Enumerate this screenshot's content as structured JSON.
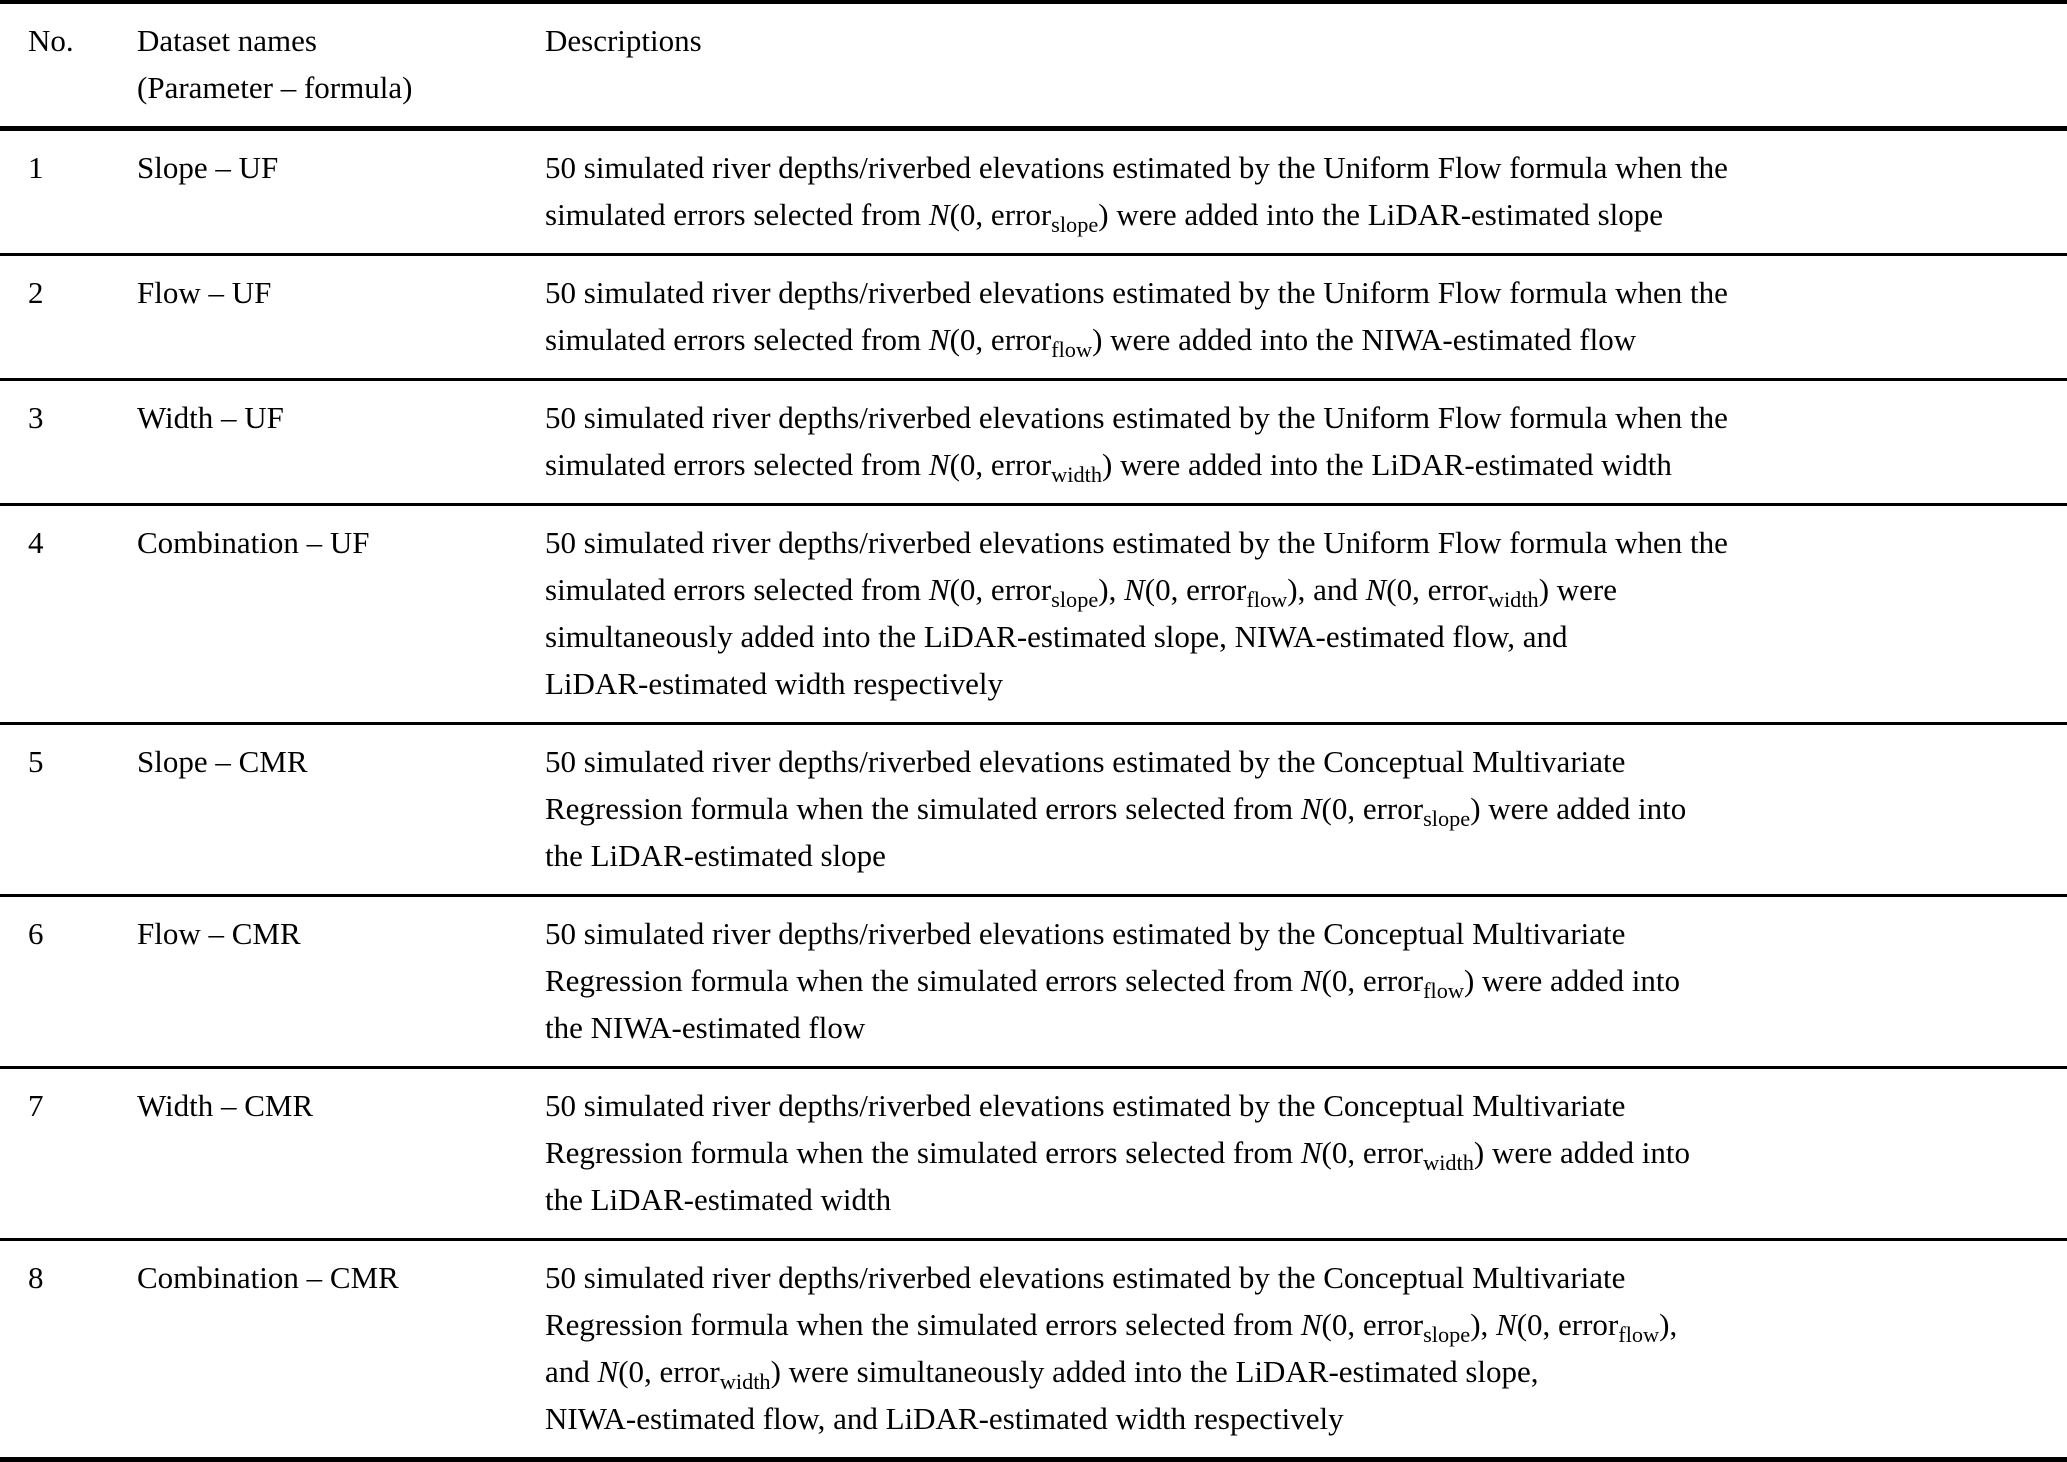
{
  "page": {
    "background_color": "#ffffff",
    "text_color": "#000000",
    "rule_color": "#000000"
  },
  "table": {
    "header": {
      "no": "No.",
      "dataset_lines": [
        "Dataset names",
        "(Parameter – formula)"
      ],
      "descriptions": "Descriptions"
    },
    "rows": [
      {
        "no": "1",
        "name": "Slope – UF",
        "description_lines": [
          [
            {
              "t": "50 simulated river depths/riverbed elevations estimated by the Uniform Flow formula when the"
            }
          ],
          [
            {
              "t": "simulated errors selected from "
            },
            {
              "i": "N"
            },
            {
              "t": "(0, error"
            },
            {
              "sub": "slope"
            },
            {
              "t": ") were added into the LiDAR-estimated slope"
            }
          ]
        ]
      },
      {
        "no": "2",
        "name": "Flow – UF",
        "description_lines": [
          [
            {
              "t": "50 simulated river depths/riverbed elevations estimated by the Uniform Flow formula when the"
            }
          ],
          [
            {
              "t": "simulated errors selected from "
            },
            {
              "i": "N"
            },
            {
              "t": "(0, error"
            },
            {
              "sub": "flow"
            },
            {
              "t": ") were added into the NIWA-estimated flow"
            }
          ]
        ]
      },
      {
        "no": "3",
        "name": "Width – UF",
        "description_lines": [
          [
            {
              "t": "50 simulated river depths/riverbed elevations estimated by the Uniform Flow formula when the"
            }
          ],
          [
            {
              "t": "simulated errors selected from "
            },
            {
              "i": "N"
            },
            {
              "t": "(0, error"
            },
            {
              "sub": "width"
            },
            {
              "t": ") were added into the LiDAR-estimated width"
            }
          ]
        ]
      },
      {
        "no": "4",
        "name": "Combination – UF",
        "description_lines": [
          [
            {
              "t": "50 simulated river depths/riverbed elevations estimated by the Uniform Flow formula when the"
            }
          ],
          [
            {
              "t": "simulated errors selected from "
            },
            {
              "i": "N"
            },
            {
              "t": "(0, error"
            },
            {
              "sub": "slope"
            },
            {
              "t": "), "
            },
            {
              "i": "N"
            },
            {
              "t": "(0, error"
            },
            {
              "sub": "flow"
            },
            {
              "t": "), and "
            },
            {
              "i": "N"
            },
            {
              "t": "(0, error"
            },
            {
              "sub": "width"
            },
            {
              "t": ") were"
            }
          ],
          [
            {
              "t": "simultaneously added into the LiDAR-estimated slope, NIWA-estimated flow, and"
            }
          ],
          [
            {
              "t": "LiDAR-estimated width respectively"
            }
          ]
        ]
      },
      {
        "no": "5",
        "name": "Slope – CMR",
        "description_lines": [
          [
            {
              "t": "50 simulated river depths/riverbed elevations estimated by the Conceptual Multivariate"
            }
          ],
          [
            {
              "t": "Regression formula when the simulated errors selected from "
            },
            {
              "i": "N"
            },
            {
              "t": "(0, error"
            },
            {
              "sub": "slope"
            },
            {
              "t": ") were added into"
            }
          ],
          [
            {
              "t": "the LiDAR-estimated slope"
            }
          ]
        ]
      },
      {
        "no": "6",
        "name": "Flow – CMR",
        "description_lines": [
          [
            {
              "t": "50 simulated river depths/riverbed elevations estimated by the Conceptual Multivariate"
            }
          ],
          [
            {
              "t": "Regression formula when the simulated errors selected from "
            },
            {
              "i": "N"
            },
            {
              "t": "(0, error"
            },
            {
              "sub": "flow"
            },
            {
              "t": ") were added into"
            }
          ],
          [
            {
              "t": "the NIWA-estimated flow"
            }
          ]
        ]
      },
      {
        "no": "7",
        "name": "Width – CMR",
        "description_lines": [
          [
            {
              "t": "50 simulated river depths/riverbed elevations estimated by the Conceptual Multivariate"
            }
          ],
          [
            {
              "t": "Regression formula when the simulated errors selected from "
            },
            {
              "i": "N"
            },
            {
              "t": "(0, error"
            },
            {
              "sub": "width"
            },
            {
              "t": ") were added into"
            }
          ],
          [
            {
              "t": "the LiDAR-estimated width"
            }
          ]
        ]
      },
      {
        "no": "8",
        "name": "Combination – CMR",
        "description_lines": [
          [
            {
              "t": "50 simulated river depths/riverbed elevations estimated by the Conceptual Multivariate"
            }
          ],
          [
            {
              "t": "Regression formula when the simulated errors selected from "
            },
            {
              "i": "N"
            },
            {
              "t": "(0, error"
            },
            {
              "sub": "slope"
            },
            {
              "t": "), "
            },
            {
              "i": "N"
            },
            {
              "t": "(0, error"
            },
            {
              "sub": "flow"
            },
            {
              "t": "),"
            }
          ],
          [
            {
              "t": "and "
            },
            {
              "i": "N"
            },
            {
              "t": "(0, error"
            },
            {
              "sub": "width"
            },
            {
              "t": ") were simultaneously added into the LiDAR-estimated slope,"
            }
          ],
          [
            {
              "t": "NIWA-estimated flow, and LiDAR-estimated width respectively"
            }
          ]
        ]
      }
    ]
  }
}
